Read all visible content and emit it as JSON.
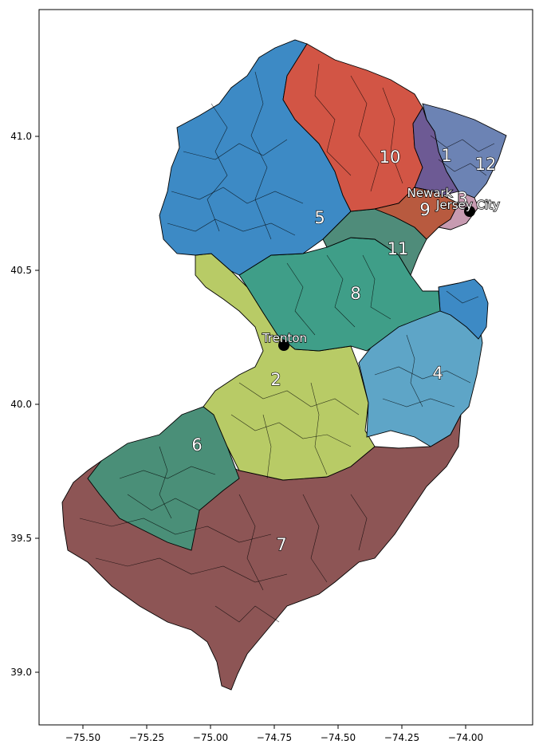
{
  "map": {
    "x_ticks": [
      "−75.50",
      "−75.25",
      "−75.00",
      "−74.75",
      "−74.50",
      "−74.25",
      "−74.00"
    ],
    "y_ticks": [
      "41.0",
      "40.5",
      "40.0",
      "39.5",
      "39.0"
    ],
    "districts": [
      {
        "id": "d1",
        "label": "1",
        "color": "#6d5a94"
      },
      {
        "id": "d2",
        "label": "2",
        "color": "#b8cb66"
      },
      {
        "id": "d3",
        "label": "3",
        "color": "#c79bb1"
      },
      {
        "id": "d4",
        "label": "4",
        "color": "#5ea5c7"
      },
      {
        "id": "d5",
        "label": "5",
        "color": "#3d8ac5"
      },
      {
        "id": "d6",
        "label": "6",
        "color": "#4a8f78"
      },
      {
        "id": "d7",
        "label": "7",
        "color": "#8d5555"
      },
      {
        "id": "d8",
        "label": "8",
        "color": "#3f9e88"
      },
      {
        "id": "d9",
        "label": "9",
        "color": "#b85a3f"
      },
      {
        "id": "d10",
        "label": "10",
        "color": "#d25545"
      },
      {
        "id": "d11",
        "label": "11",
        "color": "#4f8c7a"
      },
      {
        "id": "d12",
        "label": "12",
        "color": "#6c83b4"
      }
    ],
    "cities": [
      {
        "name": "Newark"
      },
      {
        "name": "Jersey City"
      },
      {
        "name": "Trenton"
      }
    ]
  }
}
